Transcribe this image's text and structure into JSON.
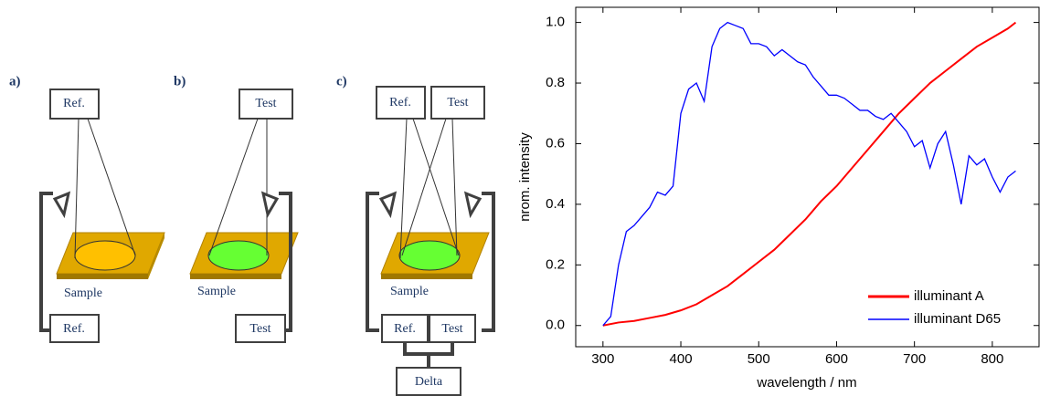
{
  "diagram": {
    "panels": [
      {
        "label": "a)",
        "top": [
          "Ref."
        ],
        "bottom": [
          "Ref."
        ],
        "sample": "Sample"
      },
      {
        "label": "b)",
        "top": [
          "Test"
        ],
        "bottom": [
          "Test"
        ],
        "sample": "Sample"
      },
      {
        "label": "c)",
        "top": [
          "Ref.",
          "Test"
        ],
        "bottom": [
          "Ref.",
          "Test"
        ],
        "sample": "Sample",
        "result": "Delta"
      }
    ]
  },
  "chart_data": {
    "type": "line",
    "xlabel": "wavelength / nm",
    "ylabel": "nrom. intensity",
    "xlim": [
      265,
      860
    ],
    "ylim": [
      -0.07,
      1.05
    ],
    "xticks": [
      300,
      400,
      500,
      600,
      700,
      800
    ],
    "yticks": [
      {
        "value": 0,
        "label": "0.0"
      },
      {
        "value": 0.2,
        "label": "0.2"
      },
      {
        "value": 0.4,
        "label": "0.4"
      },
      {
        "value": 0.6,
        "label": "0.6"
      },
      {
        "value": 0.8,
        "label": "0.8"
      },
      {
        "value": 1,
        "label": "1.0"
      }
    ],
    "legend": "lower right",
    "series": [
      {
        "name": "illuminant A",
        "color": "#ff0000",
        "x": [
          300,
          320,
          340,
          360,
          380,
          400,
          420,
          440,
          460,
          480,
          500,
          520,
          540,
          560,
          580,
          600,
          620,
          640,
          660,
          680,
          700,
          720,
          740,
          760,
          780,
          800,
          820,
          830
        ],
        "values": [
          0,
          0.01,
          0.015,
          0.025,
          0.035,
          0.05,
          0.07,
          0.1,
          0.13,
          0.17,
          0.21,
          0.25,
          0.3,
          0.35,
          0.41,
          0.46,
          0.52,
          0.58,
          0.64,
          0.7,
          0.75,
          0.8,
          0.84,
          0.88,
          0.92,
          0.95,
          0.98,
          1.0
        ]
      },
      {
        "name": "illuminant D65",
        "color": "#0000ff",
        "x": [
          300,
          310,
          320,
          330,
          340,
          350,
          360,
          370,
          380,
          390,
          400,
          410,
          420,
          430,
          440,
          450,
          460,
          470,
          480,
          490,
          500,
          510,
          520,
          530,
          540,
          550,
          560,
          570,
          580,
          590,
          600,
          610,
          620,
          630,
          640,
          650,
          660,
          670,
          680,
          690,
          700,
          710,
          720,
          730,
          740,
          750,
          760,
          770,
          780,
          790,
          800,
          810,
          820,
          830
        ],
        "values": [
          0,
          0.03,
          0.2,
          0.31,
          0.33,
          0.36,
          0.39,
          0.44,
          0.43,
          0.46,
          0.7,
          0.78,
          0.8,
          0.74,
          0.92,
          0.98,
          1.0,
          0.99,
          0.98,
          0.93,
          0.93,
          0.92,
          0.89,
          0.91,
          0.89,
          0.87,
          0.86,
          0.82,
          0.79,
          0.76,
          0.76,
          0.75,
          0.73,
          0.71,
          0.71,
          0.69,
          0.68,
          0.7,
          0.67,
          0.64,
          0.59,
          0.61,
          0.52,
          0.6,
          0.64,
          0.53,
          0.4,
          0.56,
          0.53,
          0.55,
          0.49,
          0.44,
          0.49,
          0.51
        ]
      }
    ]
  }
}
